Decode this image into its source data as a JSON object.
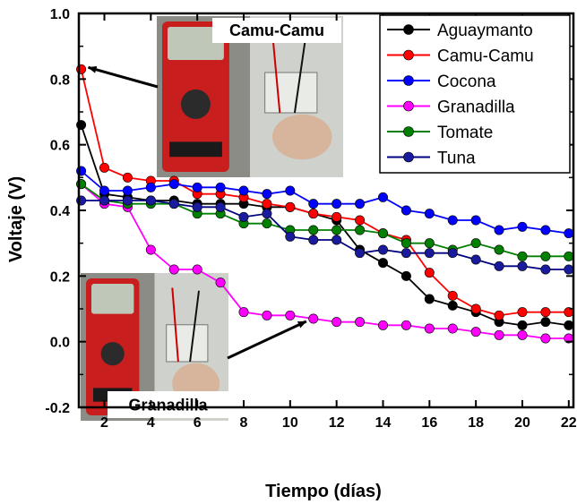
{
  "chart_data": {
    "type": "line",
    "title": "",
    "xlabel": "Tiempo (días)",
    "ylabel": "Voltaje (V)",
    "xlim": [
      0.9,
      22.2
    ],
    "ylim": [
      -0.2,
      1.0
    ],
    "x_ticks": [
      2,
      4,
      6,
      8,
      10,
      12,
      14,
      16,
      18,
      20,
      22
    ],
    "y_ticks": [
      -0.2,
      0.0,
      0.2,
      0.4,
      0.6,
      0.8,
      1.0
    ],
    "y_tick_labels": [
      "-0.2",
      "0.0",
      "0.2",
      "0.4",
      "0.6",
      "0.8",
      "1.0"
    ],
    "legend_position": "top-right",
    "grid": false,
    "x": [
      1,
      2,
      3,
      4,
      5,
      6,
      7,
      8,
      9,
      10,
      11,
      12,
      13,
      14,
      15,
      16,
      17,
      18,
      19,
      20,
      21,
      22
    ],
    "series": [
      {
        "name": "Aguaymanto",
        "color": "#000000",
        "marker_fill": "#000000",
        "values": [
          0.66,
          0.45,
          0.44,
          0.43,
          0.43,
          0.42,
          0.42,
          0.42,
          0.41,
          0.41,
          0.39,
          0.37,
          0.28,
          0.24,
          0.2,
          0.13,
          0.11,
          0.09,
          0.06,
          0.05,
          0.06,
          0.05
        ]
      },
      {
        "name": "Camu-Camu",
        "color": "#ff0000",
        "marker_fill": "#ff0000",
        "values": [
          0.83,
          0.53,
          0.5,
          0.49,
          0.49,
          0.45,
          0.45,
          0.44,
          0.42,
          0.41,
          0.39,
          0.38,
          0.37,
          0.33,
          0.31,
          0.21,
          0.14,
          0.1,
          0.08,
          0.09,
          0.09,
          0.09
        ]
      },
      {
        "name": "Cocona",
        "color": "#0000ff",
        "marker_fill": "#0000ff",
        "values": [
          0.52,
          0.46,
          0.46,
          0.47,
          0.48,
          0.47,
          0.47,
          0.46,
          0.45,
          0.46,
          0.42,
          0.42,
          0.42,
          0.44,
          0.4,
          0.39,
          0.37,
          0.37,
          0.34,
          0.35,
          0.34,
          0.33
        ]
      },
      {
        "name": "Granadilla",
        "color": "#ff00ff",
        "marker_fill": "#ff00ff",
        "values": [
          0.48,
          0.42,
          0.41,
          0.28,
          0.22,
          0.22,
          0.18,
          0.09,
          0.08,
          0.08,
          0.07,
          0.06,
          0.06,
          0.05,
          0.05,
          0.04,
          0.04,
          0.03,
          0.02,
          0.02,
          0.01,
          0.01
        ]
      },
      {
        "name": "Tomate",
        "color": "#008000",
        "marker_fill": "#008000",
        "values": [
          0.48,
          0.43,
          0.42,
          0.42,
          0.42,
          0.39,
          0.39,
          0.36,
          0.36,
          0.34,
          0.34,
          0.34,
          0.34,
          0.33,
          0.3,
          0.3,
          0.28,
          0.3,
          0.28,
          0.26,
          0.26,
          0.26
        ]
      },
      {
        "name": "Tuna",
        "color": "#000080",
        "marker_fill": "#1a1a9e",
        "values": [
          0.43,
          0.43,
          0.43,
          0.43,
          0.42,
          0.41,
          0.41,
          0.38,
          0.39,
          0.32,
          0.31,
          0.31,
          0.27,
          0.28,
          0.27,
          0.27,
          0.27,
          0.25,
          0.23,
          0.23,
          0.22,
          0.22
        ]
      }
    ],
    "inset_photos": [
      {
        "label": "Camu-Camu",
        "points_to_series": "Camu-Camu",
        "points_to_x": 1
      },
      {
        "label": "Granadilla",
        "points_to_series": "Granadilla",
        "points_to_x": 11
      }
    ]
  },
  "colors": {
    "background": "#ffffff",
    "axis": "#000000",
    "photo_panel_label_bg": "#ffffff",
    "meter_body": "#c81e1e",
    "meter_display": "#bfc7b8"
  }
}
